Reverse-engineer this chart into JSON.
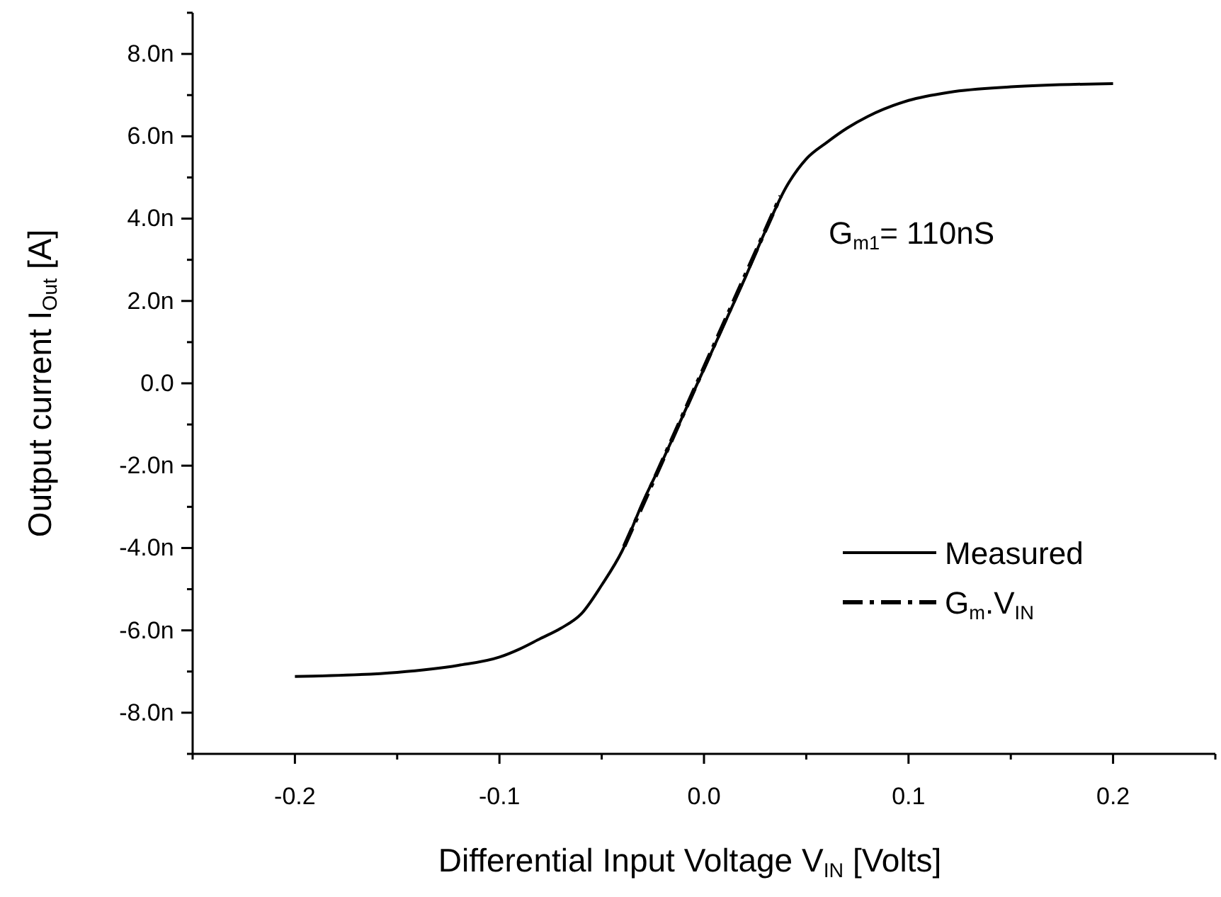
{
  "chart_data": {
    "type": "line",
    "xlabel": "Differential Input Voltage V$_{IN}$ [Volts]",
    "ylabel": "Output current I$_{Out}$ [A]",
    "xlim": [
      -0.25,
      0.25
    ],
    "xticks": [
      {
        "value": -0.25,
        "label": null
      },
      -0.2,
      {
        "value": -0.15,
        "label": null
      },
      -0.1,
      {
        "value": -0.05,
        "label": null
      },
      {
        "value": 0,
        "label": "0.0"
      },
      {
        "value": 0.05,
        "label": null
      },
      0.1,
      {
        "value": 0.15,
        "label": null
      },
      0.2,
      {
        "value": 0.25,
        "label": null
      }
    ],
    "ylim": [
      -9,
      9
    ],
    "yticks": [
      {
        "value": -9,
        "label": null
      },
      {
        "value": -8,
        "label": "-8.0n"
      },
      {
        "value": -7,
        "label": null
      },
      {
        "value": -6,
        "label": "-6.0n"
      },
      {
        "value": -5,
        "label": null
      },
      {
        "value": -4,
        "label": "-4.0n"
      },
      {
        "value": -3,
        "label": null
      },
      {
        "value": -2,
        "label": "-2.0n"
      },
      {
        "value": -1,
        "label": null
      },
      {
        "value": 0,
        "label": "0.0"
      },
      {
        "value": 1,
        "label": null
      },
      {
        "value": 2,
        "label": "2.0n"
      },
      {
        "value": 3,
        "label": null
      },
      {
        "value": 4,
        "label": "4.0n"
      },
      {
        "value": 5,
        "label": null
      },
      {
        "value": 6,
        "label": "6.0n"
      },
      {
        "value": 7,
        "label": null
      },
      {
        "value": 8,
        "label": "8.0n"
      },
      {
        "value": 9,
        "label": null
      }
    ],
    "grid": false,
    "legend": "bottom right",
    "marker": "none",
    "annotations": [
      "G$_{m1}$= 110nS"
    ],
    "series": [
      {
        "name": "Measured",
        "color": "#000000",
        "line_style": "solid",
        "x": [
          -0.2,
          -0.15,
          -0.12,
          -0.1,
          -0.09,
          -0.08,
          -0.07,
          -0.06,
          -0.05,
          -0.04,
          -0.03,
          -0.02,
          -0.01,
          0,
          0.01,
          0.02,
          0.03,
          0.04,
          0.05,
          0.06,
          0.07,
          0.08,
          0.1,
          0.12,
          0.15,
          0.2
        ],
        "values": [
          -7.12,
          -7.02,
          -6.85,
          -6.65,
          -6.45,
          -6.2,
          -5.95,
          -5.6,
          -4.9,
          -4.07,
          -2.9,
          -1.85,
          -0.75,
          0.35,
          1.45,
          2.55,
          3.7,
          4.75,
          5.45,
          5.85,
          6.2,
          6.48,
          6.87,
          7.07,
          7.2,
          7.28
        ]
      },
      {
        "name": "G$_{m}$.V$_{IN}$",
        "color": "#000000",
        "line_style": "dashed",
        "x": [
          -0.039,
          0.0375
        ],
        "values": [
          -3.96,
          4.55
        ]
      }
    ]
  }
}
